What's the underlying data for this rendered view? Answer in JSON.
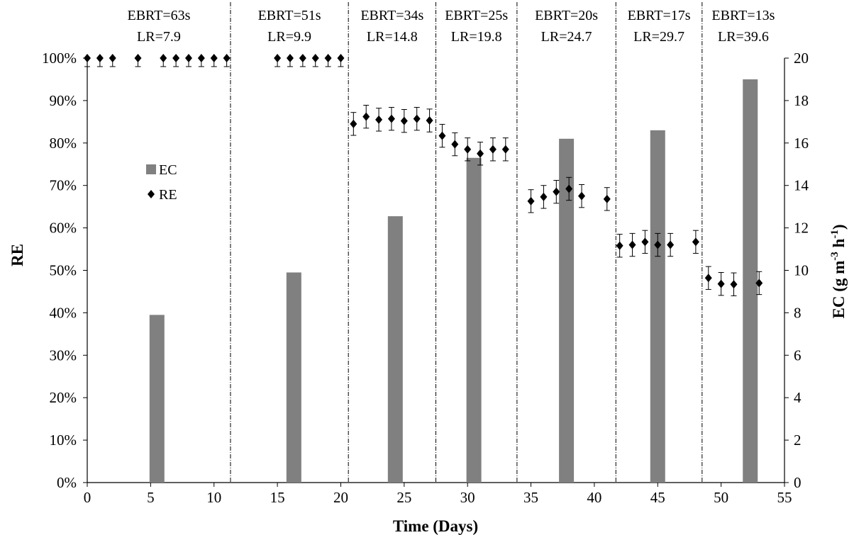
{
  "chart_data": {
    "type": "bar",
    "xlabel": "Time (Days)",
    "ylabel": "RE",
    "y2label_main": "EC (g m",
    "y2label_sup1": "-3",
    "y2label_mid": " h",
    "y2label_sup2": "-1",
    "y2label_end": ")",
    "xlim": [
      0,
      55
    ],
    "ylim": [
      0,
      1
    ],
    "y2lim": [
      0,
      20
    ],
    "xticks": [
      "0",
      "5",
      "10",
      "15",
      "20",
      "25",
      "30",
      "35",
      "40",
      "45",
      "50",
      "55"
    ],
    "yticks": [
      "0%",
      "10%",
      "20%",
      "30%",
      "40%",
      "50%",
      "60%",
      "70%",
      "80%",
      "90%",
      "100%"
    ],
    "y2ticks": [
      "0",
      "2",
      "4",
      "6",
      "8",
      "10",
      "12",
      "14",
      "16",
      "18",
      "20"
    ],
    "legend": {
      "position": "left-middle",
      "ec_label": "EC",
      "re_label": "RE"
    },
    "phase_boundaries": [
      11.3,
      20.6,
      27.5,
      33.9,
      41.7,
      48.5
    ],
    "phases": [
      {
        "ebrt": "EBRT=63s",
        "lr": "LR=7.9",
        "x_from": 0,
        "x_to": 11.3
      },
      {
        "ebrt": "EBRT=51s",
        "lr": "LR=9.9",
        "x_from": 11.3,
        "x_to": 20.6
      },
      {
        "ebrt": "EBRT=34s",
        "lr": "LR=14.8",
        "x_from": 20.6,
        "x_to": 27.5
      },
      {
        "ebrt": "EBRT=25s",
        "lr": "LR=19.8",
        "x_from": 27.5,
        "x_to": 33.9
      },
      {
        "ebrt": "EBRT=20s",
        "lr": "LR=24.7",
        "x_from": 33.9,
        "x_to": 41.7
      },
      {
        "ebrt": "EBRT=17s",
        "lr": "LR=29.7",
        "x_from": 41.7,
        "x_to": 48.5
      },
      {
        "ebrt": "EBRT=13s",
        "lr": "LR=39.6",
        "x_from": 48.5,
        "x_to": 55
      }
    ],
    "series": [
      {
        "name": "EC",
        "type": "bar",
        "axis": "right",
        "color": "#808080",
        "x": [
          5.5,
          16.3,
          24.3,
          30.5,
          37.8,
          45.0,
          52.3
        ],
        "values": [
          7.9,
          9.9,
          12.55,
          15.3,
          16.2,
          16.6,
          19.0
        ]
      },
      {
        "name": "RE",
        "type": "scatter",
        "axis": "left",
        "color": "#000000",
        "marker": "diamond",
        "x": [
          0,
          1,
          2,
          4,
          6,
          7,
          8,
          9,
          10,
          11,
          15,
          16,
          17,
          18,
          19,
          20,
          21,
          22,
          23,
          24,
          25,
          26,
          27,
          28,
          29,
          30,
          31,
          32,
          33,
          35,
          36,
          37,
          38,
          39,
          41,
          42,
          43,
          44,
          45,
          46,
          48,
          49,
          50,
          51,
          53
        ],
        "values": [
          1.0,
          1.0,
          1.0,
          1.0,
          1.0,
          1.0,
          1.0,
          1.0,
          1.0,
          1.0,
          1.0,
          1.0,
          1.0,
          1.0,
          1.0,
          1.0,
          0.845,
          0.862,
          0.855,
          0.857,
          0.852,
          0.857,
          0.853,
          0.817,
          0.797,
          0.785,
          0.775,
          0.785,
          0.785,
          0.663,
          0.673,
          0.685,
          0.692,
          0.675,
          0.668,
          0.558,
          0.56,
          0.567,
          0.56,
          0.56,
          0.567,
          0.482,
          0.468,
          0.467,
          0.47
        ],
        "error": [
          0.02,
          0.02,
          0.02,
          0.02,
          0.02,
          0.02,
          0.02,
          0.02,
          0.02,
          0.02,
          0.02,
          0.02,
          0.02,
          0.02,
          0.02,
          0.02,
          0.027,
          0.027,
          0.027,
          0.027,
          0.027,
          0.027,
          0.027,
          0.027,
          0.027,
          0.027,
          0.027,
          0.027,
          0.027,
          0.027,
          0.027,
          0.027,
          0.027,
          0.027,
          0.027,
          0.027,
          0.027,
          0.027,
          0.027,
          0.027,
          0.027,
          0.027,
          0.027,
          0.027,
          0.027
        ]
      }
    ]
  }
}
